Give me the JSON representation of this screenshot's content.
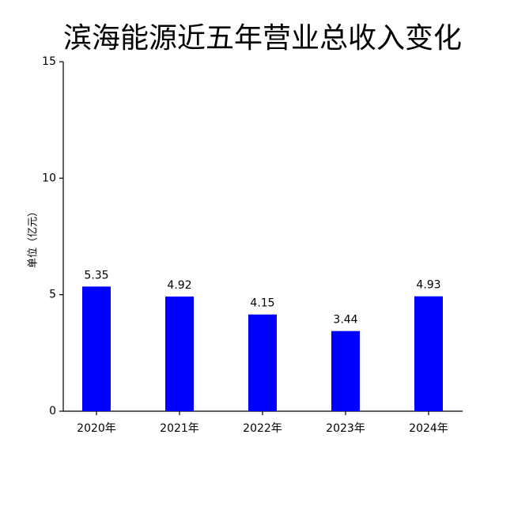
{
  "chart_data": {
    "type": "bar",
    "title": "滨海能源近五年营业总收入变化",
    "y_label": "单位（亿元）",
    "categories": [
      "2020年",
      "2021年",
      "2022年",
      "2023年",
      "2024年"
    ],
    "values": [
      5.35,
      4.92,
      4.15,
      3.44,
      4.93
    ],
    "color": "#0000ff",
    "ylim": [
      0,
      15
    ],
    "yticks": [
      0,
      5,
      10,
      15
    ],
    "grid": false
  }
}
